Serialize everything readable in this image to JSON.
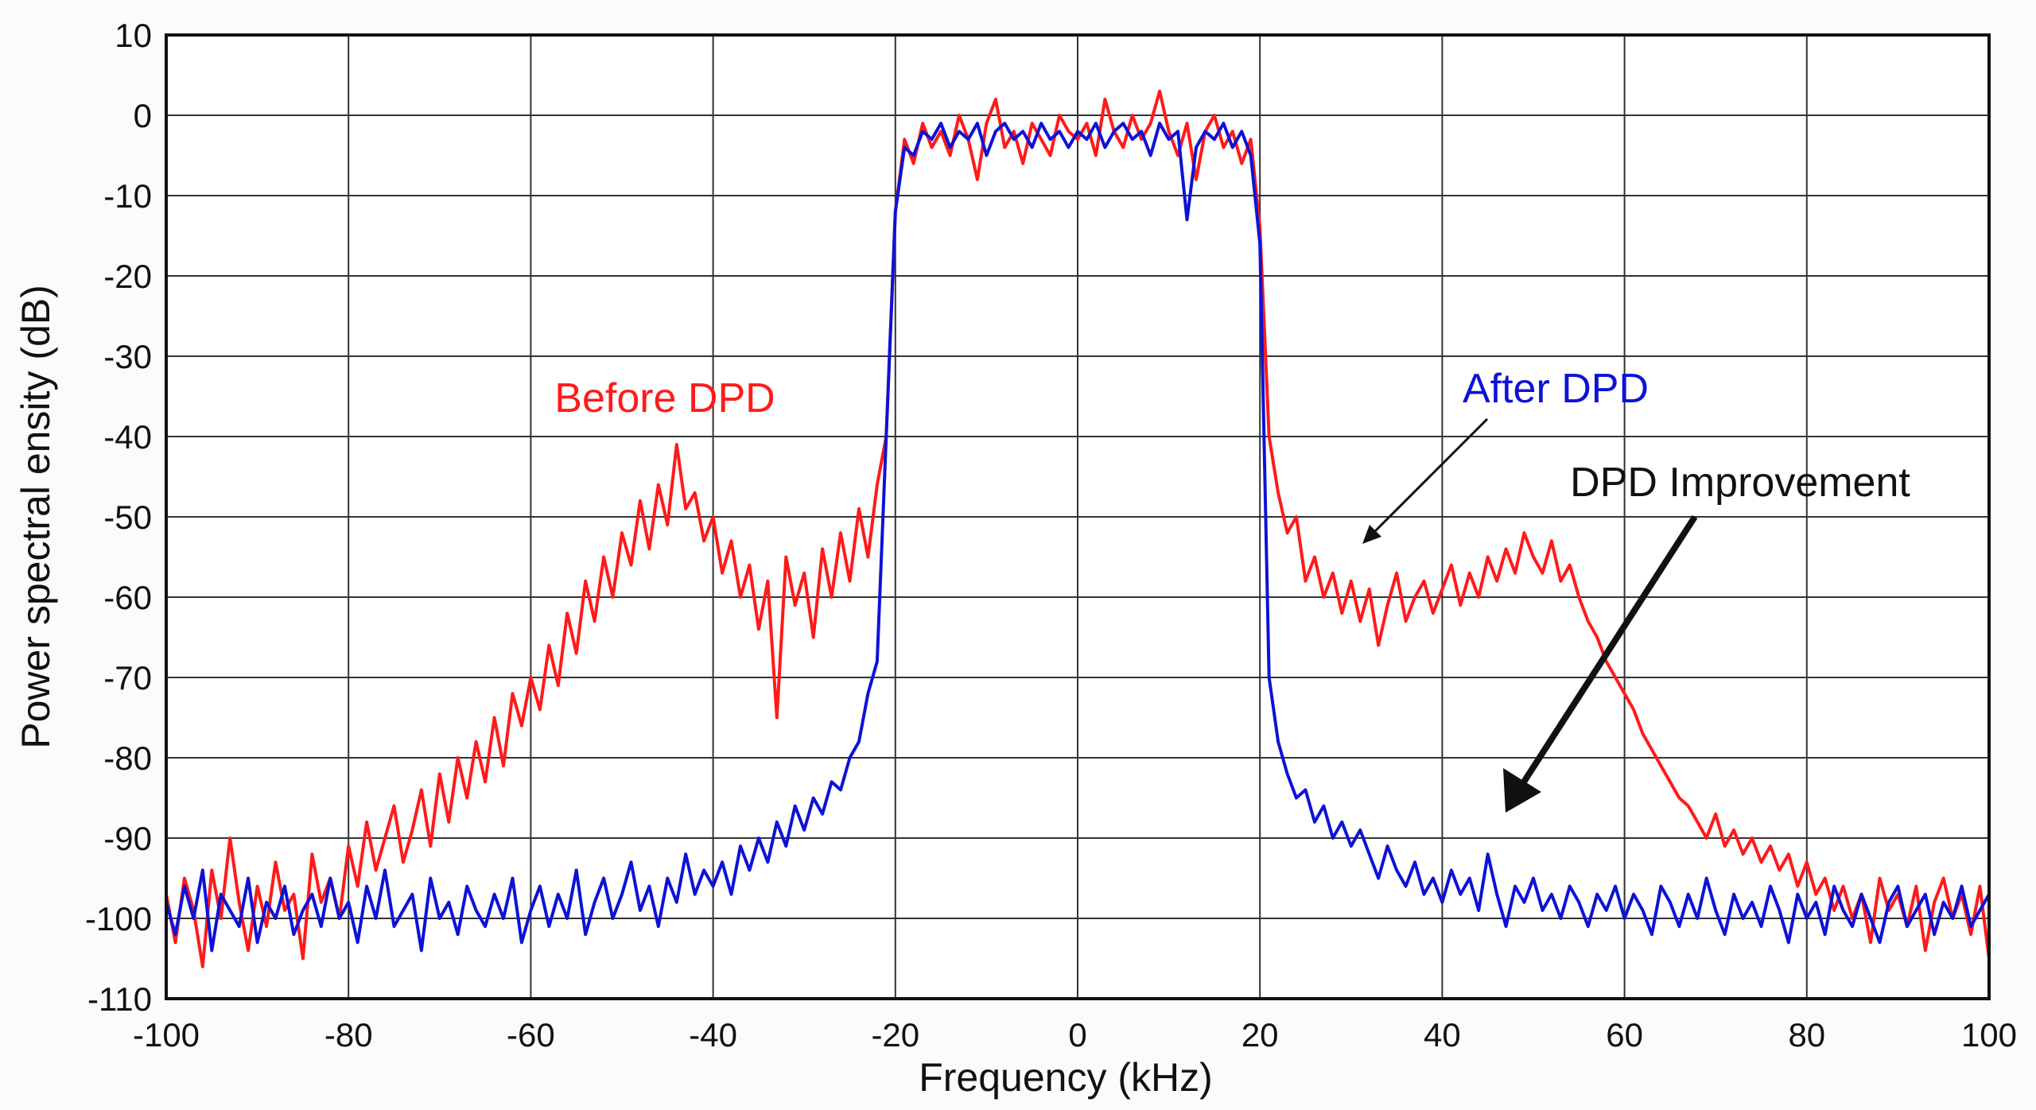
{
  "chart_data": {
    "type": "line",
    "title": "",
    "xlabel": "Frequency (kHz)",
    "ylabel": "Power spectral ensity (dB)",
    "xlim": [
      -100,
      100
    ],
    "ylim": [
      -110,
      10
    ],
    "xticks": [
      "-100",
      "-80",
      "-60",
      "-40",
      "-20",
      "0",
      "20",
      "40",
      "60",
      "80",
      "100"
    ],
    "yticks": [
      "10",
      "0",
      "-10",
      "-20",
      "-30",
      "-40",
      "-50",
      "-60",
      "-70",
      "-80",
      "-90",
      "-100",
      "-110"
    ],
    "grid": true,
    "x_start": -100,
    "x_step": 1,
    "series": [
      {
        "name": "Before DPD",
        "color": "#ff1a1a",
        "values": [
          -97,
          -103,
          -95,
          -99,
          -106,
          -94,
          -100,
          -90,
          -98,
          -104,
          -96,
          -101,
          -93,
          -99,
          -97,
          -105,
          -92,
          -98,
          -95,
          -100,
          -91,
          -96,
          -88,
          -94,
          -90,
          -86,
          -93,
          -89,
          -84,
          -91,
          -82,
          -88,
          -80,
          -85,
          -78,
          -83,
          -75,
          -81,
          -72,
          -76,
          -70,
          -74,
          -66,
          -71,
          -62,
          -67,
          -58,
          -63,
          -55,
          -60,
          -52,
          -56,
          -48,
          -54,
          -46,
          -51,
          -41,
          -49,
          -47,
          -53,
          -50,
          -57,
          -53,
          -60,
          -56,
          -64,
          -58,
          -75,
          -55,
          -61,
          -57,
          -65,
          -54,
          -60,
          -52,
          -58,
          -49,
          -55,
          -46,
          -40,
          -12,
          -3,
          -6,
          -1,
          -4,
          -2,
          -5,
          0,
          -3,
          -8,
          -1,
          2,
          -4,
          -2,
          -6,
          -1,
          -3,
          -5,
          0,
          -2,
          -3,
          -1,
          -5,
          2,
          -2,
          -4,
          0,
          -3,
          -1,
          3,
          -2,
          -5,
          -1,
          -8,
          -2,
          0,
          -4,
          -2,
          -6,
          -3,
          -14,
          -40,
          -47,
          -52,
          -50,
          -58,
          -55,
          -60,
          -57,
          -62,
          -58,
          -63,
          -59,
          -66,
          -61,
          -57,
          -63,
          -60,
          -58,
          -62,
          -59,
          -56,
          -61,
          -57,
          -60,
          -55,
          -58,
          -54,
          -57,
          -52,
          -55,
          -57,
          -53,
          -58,
          -56,
          -60,
          -63,
          -65,
          -68,
          -70,
          -72,
          -74,
          -77,
          -79,
          -81,
          -83,
          -85,
          -86,
          -88,
          -90,
          -87,
          -91,
          -89,
          -92,
          -90,
          -93,
          -91,
          -94,
          -92,
          -96,
          -93,
          -97,
          -95,
          -99,
          -96,
          -100,
          -97,
          -103,
          -95,
          -99,
          -97,
          -101,
          -96,
          -104,
          -98,
          -95,
          -100,
          -97,
          -102,
          -96,
          -105
        ]
      },
      {
        "name": "After DPD",
        "color": "#0d12d6",
        "values": [
          -98,
          -102,
          -96,
          -100,
          -94,
          -104,
          -97,
          -99,
          -101,
          -95,
          -103,
          -98,
          -100,
          -96,
          -102,
          -99,
          -97,
          -101,
          -95,
          -100,
          -98,
          -103,
          -96,
          -100,
          -94,
          -101,
          -99,
          -97,
          -104,
          -95,
          -100,
          -98,
          -102,
          -96,
          -99,
          -101,
          -97,
          -100,
          -95,
          -103,
          -99,
          -96,
          -101,
          -97,
          -100,
          -94,
          -102,
          -98,
          -95,
          -100,
          -97,
          -93,
          -99,
          -96,
          -101,
          -95,
          -98,
          -92,
          -97,
          -94,
          -96,
          -93,
          -97,
          -91,
          -94,
          -90,
          -93,
          -88,
          -91,
          -86,
          -89,
          -85,
          -87,
          -83,
          -84,
          -80,
          -78,
          -72,
          -68,
          -40,
          -12,
          -4,
          -5,
          -2,
          -3,
          -1,
          -4,
          -2,
          -3,
          -1,
          -5,
          -2,
          -1,
          -3,
          -2,
          -4,
          -1,
          -3,
          -2,
          -4,
          -2,
          -3,
          -1,
          -4,
          -2,
          -1,
          -3,
          -2,
          -5,
          -1,
          -3,
          -2,
          -13,
          -4,
          -2,
          -3,
          -1,
          -4,
          -2,
          -5,
          -16,
          -70,
          -78,
          -82,
          -85,
          -84,
          -88,
          -86,
          -90,
          -88,
          -91,
          -89,
          -92,
          -95,
          -91,
          -94,
          -96,
          -93,
          -97,
          -95,
          -98,
          -94,
          -97,
          -95,
          -99,
          -92,
          -97,
          -101,
          -96,
          -98,
          -95,
          -99,
          -97,
          -100,
          -96,
          -98,
          -101,
          -97,
          -99,
          -96,
          -100,
          -97,
          -99,
          -102,
          -96,
          -98,
          -101,
          -97,
          -100,
          -95,
          -99,
          -102,
          -97,
          -100,
          -98,
          -101,
          -96,
          -99,
          -103,
          -97,
          -100,
          -98,
          -102,
          -96,
          -99,
          -101,
          -97,
          -100,
          -103,
          -98,
          -96,
          -101,
          -99,
          -97,
          -102,
          -98,
          -100,
          -96,
          -101,
          -99,
          -97
        ]
      }
    ],
    "annotations": [
      {
        "text": "Before DPD",
        "color": "#ff1a1a"
      },
      {
        "text": "After DPD",
        "color": "#0d12d6"
      },
      {
        "text": "DPD Improvement",
        "color": "#111111"
      }
    ]
  }
}
